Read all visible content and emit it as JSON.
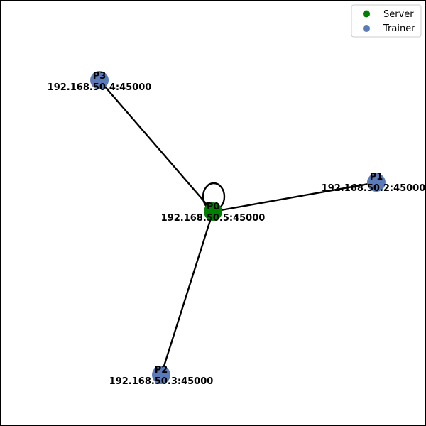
{
  "colors": {
    "server": "#008000",
    "trainer": "#5a7bb8",
    "edge": "#000000"
  },
  "legend": {
    "items": [
      {
        "label": "Server",
        "color_key": "server"
      },
      {
        "label": "Trainer",
        "color_key": "trainer"
      }
    ]
  },
  "nodes": [
    {
      "id": "P0",
      "address": "192.168.50.5:45000",
      "role": "server"
    },
    {
      "id": "P1",
      "address": "192.168.50.2:45000",
      "role": "trainer"
    },
    {
      "id": "P2",
      "address": "192.168.50.3:45000",
      "role": "trainer"
    },
    {
      "id": "P3",
      "address": "192.168.50.4:45000",
      "role": "trainer"
    }
  ],
  "edges": [
    {
      "from": "P0",
      "to": "P1"
    },
    {
      "from": "P0",
      "to": "P2"
    },
    {
      "from": "P0",
      "to": "P3"
    },
    {
      "from": "P0",
      "to": "P0"
    }
  ]
}
